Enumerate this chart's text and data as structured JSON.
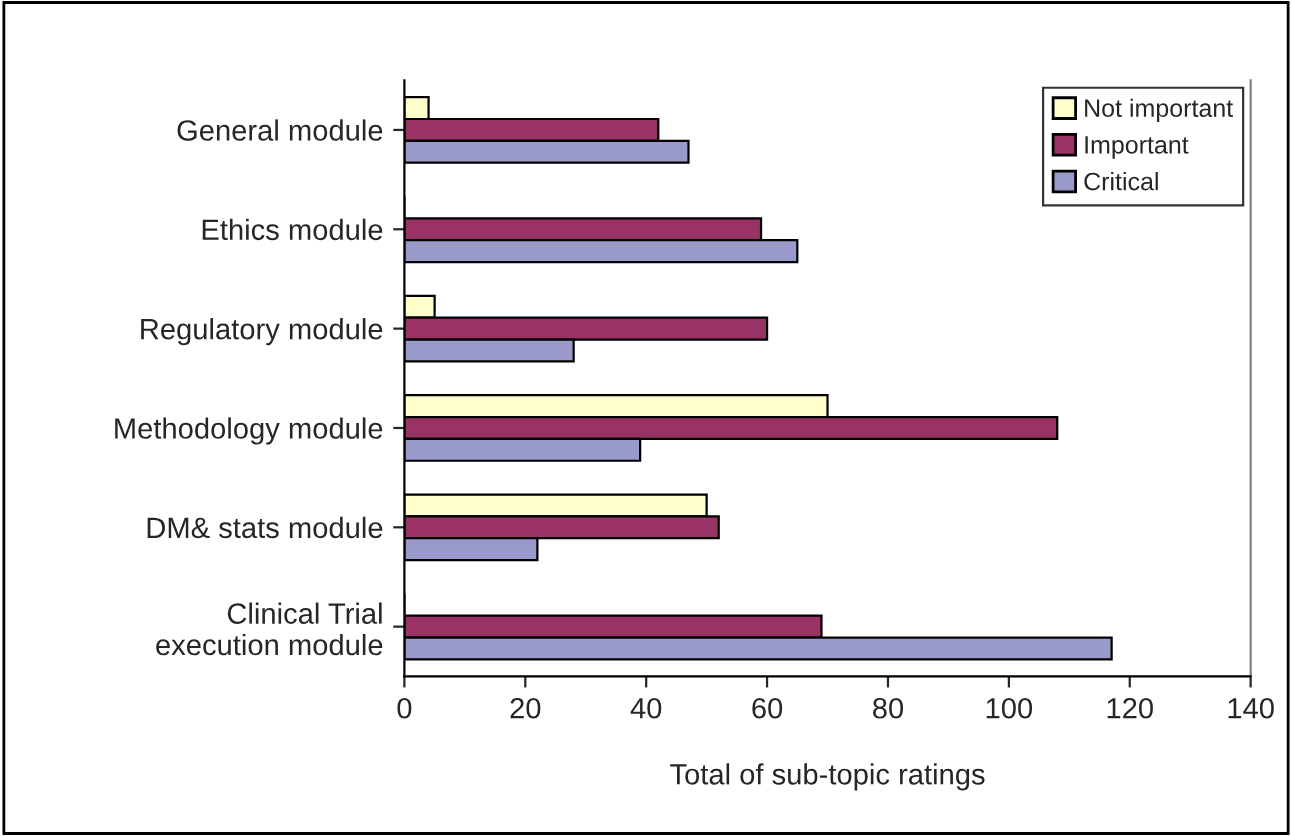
{
  "chart_data": {
    "type": "bar",
    "orientation": "horizontal",
    "categories": [
      "General module",
      "Ethics module",
      "Regulatory module",
      "Methodology module",
      "DM& stats module",
      "Clinical Trial\nexecution module"
    ],
    "series": [
      {
        "name": "Not important",
        "color": "#ffffcc",
        "values": [
          4,
          0,
          5,
          70,
          50,
          0
        ]
      },
      {
        "name": "Important",
        "color": "#993366",
        "values": [
          42,
          59,
          60,
          108,
          52,
          69
        ]
      },
      {
        "name": "Critical",
        "color": "#9999cc",
        "values": [
          47,
          65,
          28,
          39,
          22,
          117
        ]
      }
    ],
    "xlabel": "Total of sub-topic ratings",
    "xlim": [
      0,
      140
    ],
    "xticks": [
      0,
      20,
      40,
      60,
      80,
      100,
      120,
      140
    ],
    "grid": false,
    "legend": "top right"
  }
}
